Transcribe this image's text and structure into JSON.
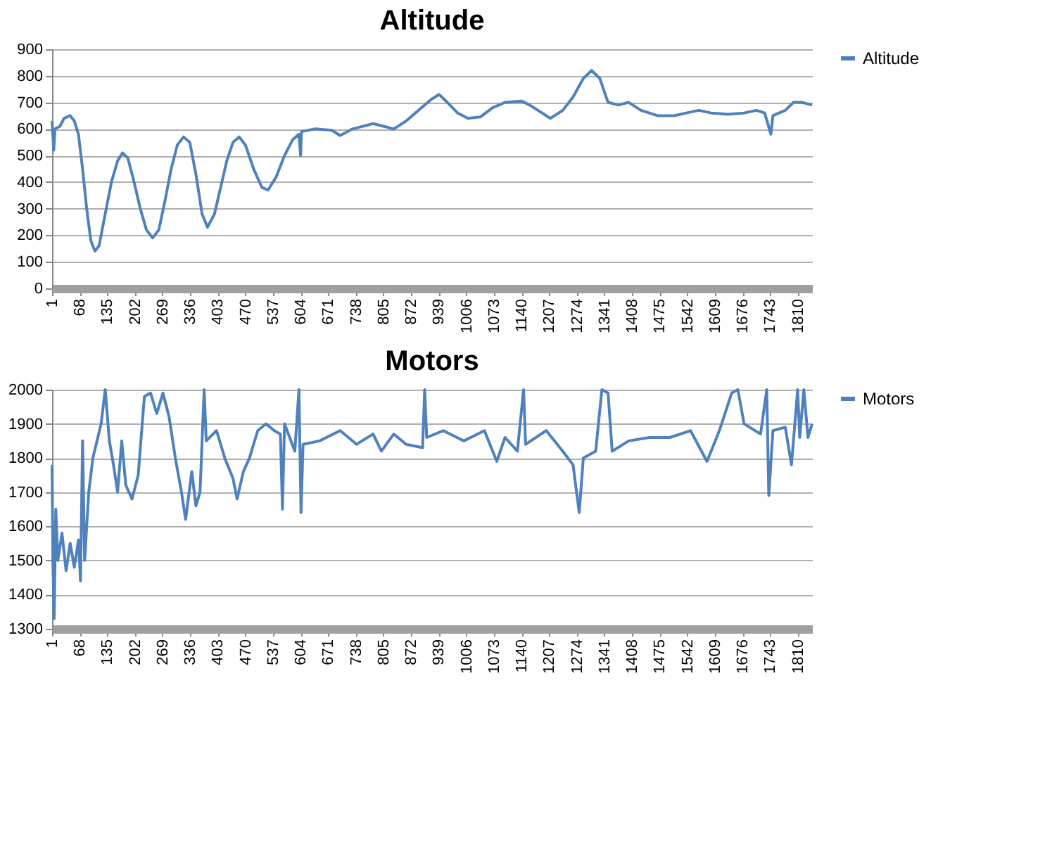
{
  "chart_data": [
    {
      "type": "line",
      "title": "Altitude",
      "xlim": [
        1,
        1845
      ],
      "xticks": [
        1,
        68,
        135,
        202,
        269,
        336,
        403,
        470,
        537,
        604,
        671,
        738,
        805,
        872,
        939,
        1006,
        1073,
        1140,
        1207,
        1274,
        1341,
        1408,
        1475,
        1542,
        1609,
        1676,
        1743,
        1810
      ],
      "ylim": [
        0,
        900
      ],
      "yticks": [
        0,
        100,
        200,
        300,
        400,
        500,
        600,
        700,
        800,
        900
      ],
      "grid": "y",
      "legend": "right",
      "marker": "none",
      "line_style": "solid",
      "series": [
        {
          "name": "Altitude",
          "color": "#4f81bd",
          "x": [
            1,
            5,
            8,
            20,
            30,
            45,
            55,
            65,
            75,
            85,
            95,
            105,
            115,
            130,
            145,
            160,
            172,
            185,
            200,
            215,
            230,
            245,
            260,
            275,
            290,
            305,
            320,
            335,
            350,
            365,
            378,
            395,
            410,
            425,
            440,
            455,
            470,
            490,
            510,
            525,
            545,
            565,
            585,
            600,
            604,
            606,
            640,
            680,
            700,
            730,
            780,
            805,
            830,
            860,
            890,
            920,
            940,
            960,
            985,
            1010,
            1040,
            1070,
            1100,
            1140,
            1160,
            1180,
            1210,
            1240,
            1265,
            1290,
            1310,
            1330,
            1350,
            1375,
            1400,
            1430,
            1470,
            1510,
            1540,
            1570,
            1600,
            1640,
            1680,
            1710,
            1730,
            1745,
            1750,
            1780,
            1800,
            1820,
            1845
          ],
          "values": [
            630,
            520,
            600,
            610,
            640,
            650,
            630,
            580,
            450,
            300,
            180,
            140,
            160,
            280,
            400,
            480,
            510,
            490,
            400,
            300,
            220,
            190,
            220,
            330,
            450,
            540,
            570,
            550,
            430,
            280,
            230,
            280,
            380,
            480,
            550,
            570,
            540,
            450,
            380,
            370,
            420,
            500,
            560,
            580,
            500,
            590,
            600,
            595,
            575,
            600,
            620,
            610,
            600,
            630,
            670,
            710,
            730,
            700,
            660,
            640,
            645,
            680,
            700,
            705,
            690,
            670,
            640,
            670,
            720,
            790,
            820,
            790,
            700,
            690,
            700,
            670,
            650,
            650,
            660,
            670,
            660,
            655,
            660,
            670,
            660,
            580,
            650,
            670,
            700,
            700,
            690
          ]
        }
      ]
    },
    {
      "type": "line",
      "title": "Motors",
      "xlim": [
        1,
        1845
      ],
      "xticks": [
        1,
        68,
        135,
        202,
        269,
        336,
        403,
        470,
        537,
        604,
        671,
        738,
        805,
        872,
        939,
        1006,
        1073,
        1140,
        1207,
        1274,
        1341,
        1408,
        1475,
        1542,
        1609,
        1676,
        1743,
        1810
      ],
      "ylim": [
        1300,
        2000
      ],
      "yticks": [
        1300,
        1400,
        1500,
        1600,
        1700,
        1800,
        1900,
        2000
      ],
      "grid": "y",
      "legend": "right",
      "marker": "none",
      "line_style": "solid",
      "series": [
        {
          "name": "Motors",
          "color": "#4f81bd",
          "x": [
            1,
            3,
            6,
            10,
            15,
            25,
            35,
            45,
            55,
            65,
            70,
            75,
            80,
            90,
            100,
            110,
            120,
            130,
            140,
            150,
            160,
            170,
            180,
            195,
            210,
            225,
            240,
            255,
            270,
            285,
            300,
            315,
            325,
            340,
            350,
            360,
            370,
            375,
            400,
            420,
            440,
            450,
            465,
            480,
            500,
            520,
            540,
            555,
            560,
            565,
            590,
            600,
            605,
            610,
            650,
            700,
            740,
            780,
            800,
            830,
            860,
            900,
            905,
            910,
            950,
            1000,
            1050,
            1080,
            1100,
            1130,
            1145,
            1150,
            1200,
            1240,
            1265,
            1280,
            1290,
            1320,
            1335,
            1350,
            1360,
            1400,
            1450,
            1500,
            1550,
            1590,
            1620,
            1650,
            1665,
            1680,
            1720,
            1735,
            1740,
            1750,
            1780,
            1795,
            1810,
            1815,
            1825,
            1835,
            1845
          ],
          "values": [
            1780,
            1500,
            1330,
            1650,
            1500,
            1580,
            1470,
            1550,
            1480,
            1560,
            1440,
            1850,
            1500,
            1700,
            1800,
            1850,
            1900,
            2000,
            1850,
            1780,
            1700,
            1850,
            1720,
            1680,
            1750,
            1980,
            1990,
            1930,
            1990,
            1920,
            1800,
            1700,
            1620,
            1760,
            1660,
            1700,
            2000,
            1850,
            1880,
            1800,
            1740,
            1680,
            1760,
            1800,
            1880,
            1900,
            1880,
            1870,
            1650,
            1900,
            1820,
            2000,
            1640,
            1840,
            1850,
            1880,
            1840,
            1870,
            1820,
            1870,
            1840,
            1830,
            2000,
            1860,
            1880,
            1850,
            1880,
            1790,
            1860,
            1820,
            2000,
            1840,
            1880,
            1820,
            1780,
            1640,
            1800,
            1820,
            2000,
            1990,
            1820,
            1850,
            1860,
            1860,
            1880,
            1790,
            1880,
            1990,
            2000,
            1900,
            1870,
            2000,
            1690,
            1880,
            1890,
            1780,
            2000,
            1860,
            2000,
            1860,
            1900
          ]
        }
      ]
    }
  ]
}
